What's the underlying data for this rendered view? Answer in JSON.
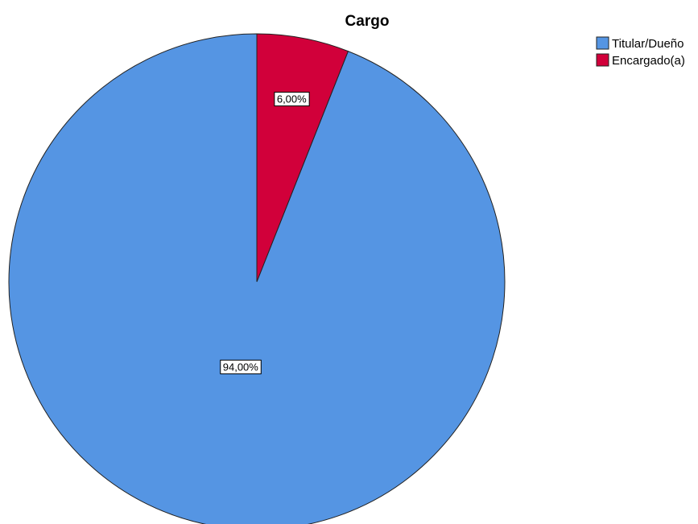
{
  "chart_data": {
    "type": "pie",
    "title": "Cargo",
    "start_angle_deg": 0,
    "direction": "counterclockwise",
    "slices": [
      {
        "label": "Titular/Dueño",
        "value": 94.0,
        "display": "94,00%",
        "color": "#5595E3"
      },
      {
        "label": "Encargado(a)",
        "value": 6.0,
        "display": "6,00%",
        "color": "#D1003A"
      }
    ],
    "legend_position": "top-right"
  }
}
